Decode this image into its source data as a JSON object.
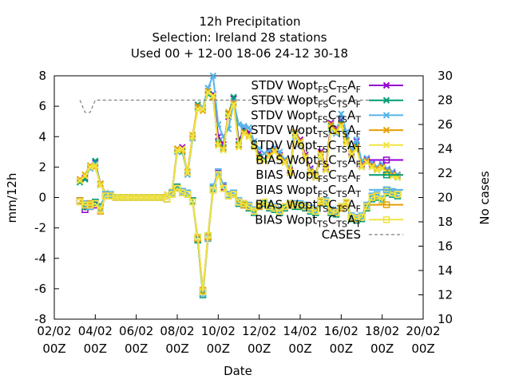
{
  "chart_data": {
    "type": "line",
    "title": [
      "12h Precipitation",
      "Selection: Ireland      28 stations",
      "Used  00 + 12-00 18-06 24-12 30-18"
    ],
    "xlabel": "Date",
    "ylabel": "mm/12h",
    "y2label": "No cases",
    "xlim": [
      0,
      216
    ],
    "ylim": [
      -8,
      8
    ],
    "y2lim": [
      10,
      30
    ],
    "xticks": [
      {
        "x": 0,
        "label": [
          "02/02",
          "00Z"
        ]
      },
      {
        "x": 24,
        "label": [
          "04/02",
          "00Z"
        ]
      },
      {
        "x": 48,
        "label": [
          "06/02",
          "00Z"
        ]
      },
      {
        "x": 72,
        "label": [
          "08/02",
          "00Z"
        ]
      },
      {
        "x": 96,
        "label": [
          "10/02",
          "00Z"
        ]
      },
      {
        "x": 120,
        "label": [
          "12/02",
          "00Z"
        ]
      },
      {
        "x": 144,
        "label": [
          "14/02",
          "00Z"
        ]
      },
      {
        "x": 168,
        "label": [
          "16/02",
          "00Z"
        ]
      },
      {
        "x": 192,
        "label": [
          "18/02",
          "00Z"
        ]
      },
      {
        "x": 216,
        "label": [
          "20/02",
          "00Z"
        ]
      }
    ],
    "yticks": [
      -8,
      -6,
      -4,
      -2,
      0,
      2,
      4,
      6,
      8
    ],
    "y2ticks": [
      10,
      12,
      14,
      16,
      18,
      20,
      22,
      24,
      26,
      28,
      30
    ],
    "grid": false,
    "legend_position": "top-right",
    "legend": [
      {
        "label": "STDV Wopt",
        "sub": [
          "FS",
          "C",
          "TS",
          "A",
          "F"
        ]
      },
      {
        "label": "STDV Wopt",
        "sub": [
          "FS",
          "C",
          "TS",
          "A",
          "F"
        ]
      },
      {
        "label": "STDV Wopt",
        "sub": [
          "FS",
          "C",
          "TS",
          "A",
          "T"
        ]
      },
      {
        "label": "STDV Wopt",
        "sub": [
          "TS",
          "C",
          "TS",
          "A",
          "F"
        ]
      },
      {
        "label": "STDV Wopt",
        "sub": [
          "TS",
          "C",
          "TS",
          "A",
          "T"
        ]
      },
      {
        "label": "BIAS Wopt",
        "sub": [
          "FS",
          "C",
          "TS",
          "A",
          "F"
        ]
      },
      {
        "label": "BIAS Wopt",
        "sub": [
          "FS",
          "C",
          "TS",
          "A",
          "F"
        ]
      },
      {
        "label": "BIAS Wopt",
        "sub": [
          "FS",
          "C",
          "TS",
          "A",
          "T"
        ]
      },
      {
        "label": "BIAS Wopt",
        "sub": [
          "TS",
          "C",
          "TS",
          "A",
          "F"
        ]
      },
      {
        "label": "BIAS Wopt",
        "sub": [
          "TS",
          "C",
          "TS",
          "A",
          "T"
        ]
      },
      {
        "label": "CASES",
        "sub": []
      }
    ],
    "x": [
      15,
      18,
      21,
      24,
      27,
      30,
      33,
      36,
      39,
      42,
      45,
      48,
      51,
      54,
      57,
      60,
      63,
      66,
      69,
      72,
      75,
      78,
      81,
      84,
      87,
      90,
      93,
      96,
      99,
      102,
      105,
      108,
      111,
      114,
      117,
      120,
      123,
      126,
      129,
      132,
      135,
      138,
      141,
      144,
      147,
      150,
      153,
      156,
      159,
      162,
      165,
      168,
      171,
      174,
      177,
      180,
      183,
      186,
      189,
      192,
      195,
      198,
      201
    ],
    "series": [
      {
        "name": "STDV-1",
        "color": "#9400d3",
        "marker": "x",
        "axis": "y1",
        "values": [
          1.1,
          1.3,
          2.0,
          2.3,
          0.9,
          0.3,
          0.1,
          0.0,
          0.0,
          0.0,
          0.0,
          0.0,
          0.0,
          0.0,
          0.0,
          0.0,
          0.0,
          0.2,
          0.4,
          3.2,
          3.3,
          1.6,
          4.0,
          6.0,
          5.8,
          7.0,
          6.8,
          4.0,
          3.5,
          5.3,
          6.5,
          3.7,
          4.5,
          4.3,
          3.5,
          2.9,
          2.5,
          3.0,
          3.2,
          2.8,
          2.5,
          1.8,
          4.3,
          3.8,
          2.8,
          1.9,
          1.4,
          3.0,
          2.0,
          4.9,
          4.5,
          5.1,
          4.0,
          3.0,
          3.7,
          2.2,
          2.5,
          2.2,
          2.0,
          2.1,
          1.8,
          1.6,
          1.5
        ]
      },
      {
        "name": "STDV-2",
        "color": "#009e73",
        "marker": "x",
        "axis": "y1",
        "values": [
          1.0,
          1.2,
          2.0,
          2.4,
          0.8,
          0.3,
          0.1,
          0.0,
          0.0,
          0.0,
          0.0,
          0.0,
          0.0,
          0.0,
          0.0,
          0.0,
          0.0,
          0.2,
          0.4,
          3.1,
          3.0,
          1.6,
          3.9,
          6.1,
          5.9,
          6.8,
          6.6,
          3.6,
          3.3,
          5.5,
          6.6,
          3.5,
          4.4,
          4.0,
          3.5,
          2.7,
          2.5,
          2.8,
          3.0,
          2.6,
          2.3,
          1.6,
          4.2,
          3.6,
          2.6,
          1.7,
          1.3,
          2.8,
          1.8,
          4.7,
          4.3,
          4.9,
          3.8,
          2.8,
          3.5,
          2.0,
          2.3,
          2.0,
          1.8,
          1.9,
          1.6,
          1.4,
          1.3
        ]
      },
      {
        "name": "STDV-3",
        "color": "#56b4e9",
        "marker": "x",
        "axis": "y1",
        "values": [
          1.1,
          1.4,
          1.9,
          2.2,
          0.9,
          0.3,
          0.1,
          0.0,
          0.0,
          0.0,
          0.0,
          0.0,
          0.0,
          0.0,
          0.0,
          0.0,
          0.0,
          0.2,
          0.4,
          3.0,
          3.1,
          1.5,
          3.9,
          5.9,
          5.9,
          7.2,
          8.0,
          4.8,
          4.0,
          4.5,
          6.3,
          4.8,
          4.7,
          4.6,
          3.7,
          3.2,
          2.9,
          3.1,
          3.3,
          3.0,
          2.5,
          1.9,
          4.0,
          3.5,
          2.7,
          1.8,
          1.5,
          2.7,
          1.9,
          4.5,
          4.2,
          5.5,
          4.3,
          3.1,
          3.8,
          2.4,
          2.6,
          2.3,
          2.0,
          2.2,
          1.9,
          1.7,
          1.5
        ]
      },
      {
        "name": "STDV-4",
        "color": "#e69f00",
        "marker": "x",
        "axis": "y1",
        "values": [
          1.2,
          1.5,
          2.1,
          2.0,
          0.9,
          0.3,
          0.1,
          0.0,
          0.0,
          0.0,
          0.0,
          0.0,
          0.0,
          0.0,
          0.0,
          0.0,
          0.0,
          0.2,
          0.4,
          3.2,
          3.1,
          1.7,
          4.1,
          6.0,
          5.7,
          7.0,
          6.6,
          3.5,
          3.2,
          5.6,
          6.2,
          3.4,
          4.3,
          4.1,
          3.4,
          2.6,
          2.4,
          2.8,
          3.1,
          2.7,
          2.4,
          1.7,
          4.3,
          3.7,
          2.7,
          1.7,
          1.4,
          2.9,
          1.9,
          4.8,
          4.4,
          4.8,
          3.7,
          2.9,
          3.3,
          2.1,
          2.4,
          2.1,
          1.9,
          2.0,
          1.7,
          1.5,
          1.4
        ]
      },
      {
        "name": "STDV-5",
        "color": "#f0e442",
        "marker": "x",
        "axis": "y1",
        "values": [
          1.1,
          1.4,
          2.0,
          2.1,
          0.8,
          0.3,
          0.1,
          0.0,
          0.0,
          0.0,
          0.0,
          0.0,
          0.0,
          0.0,
          0.0,
          0.0,
          0.0,
          0.2,
          0.4,
          3.1,
          3.2,
          1.6,
          4.0,
          5.8,
          5.8,
          6.9,
          6.7,
          3.4,
          3.1,
          5.4,
          6.1,
          3.3,
          4.2,
          4.0,
          3.3,
          2.5,
          2.4,
          2.7,
          3.0,
          2.6,
          2.3,
          1.6,
          4.1,
          3.6,
          2.6,
          1.6,
          1.3,
          2.8,
          1.8,
          4.6,
          4.3,
          4.7,
          3.6,
          2.8,
          3.2,
          2.0,
          2.3,
          2.0,
          1.8,
          1.9,
          1.6,
          1.4,
          1.3
        ]
      },
      {
        "name": "BIAS-1",
        "color": "#9400d3",
        "marker": "square",
        "axis": "y1",
        "values": [
          -0.3,
          -0.8,
          -0.6,
          -0.5,
          -0.8,
          0.1,
          0.1,
          0.0,
          0.0,
          0.0,
          0.0,
          0.0,
          0.0,
          0.0,
          0.0,
          0.0,
          0.0,
          -0.1,
          0.3,
          0.6,
          0.3,
          0.2,
          -0.3,
          -2.7,
          -6.2,
          -2.6,
          0.5,
          1.6,
          0.7,
          0.2,
          0.3,
          -0.3,
          -0.4,
          -0.6,
          -0.9,
          -0.5,
          -0.3,
          -0.6,
          -0.7,
          -0.9,
          -0.6,
          -0.4,
          -0.5,
          -0.5,
          -0.6,
          -0.8,
          -0.9,
          -0.2,
          -0.3,
          -0.9,
          -1.0,
          -0.6,
          -0.3,
          -1.3,
          -1.4,
          -1.3,
          -0.6,
          0.0,
          0.1,
          -0.2,
          0.4,
          0.3,
          0.2
        ]
      },
      {
        "name": "BIAS-2",
        "color": "#009e73",
        "marker": "square",
        "axis": "y1",
        "values": [
          -0.2,
          -0.6,
          -0.4,
          -0.3,
          -0.6,
          0.2,
          0.1,
          0.0,
          0.0,
          0.0,
          0.0,
          0.0,
          0.0,
          0.0,
          0.0,
          0.0,
          0.0,
          -0.1,
          0.3,
          0.7,
          0.4,
          0.3,
          -0.2,
          -2.8,
          -6.4,
          -2.5,
          0.6,
          1.5,
          0.6,
          0.1,
          0.2,
          -0.4,
          -0.5,
          -0.7,
          -1.0,
          -0.6,
          -0.4,
          -0.7,
          -0.8,
          -1.0,
          -0.7,
          -0.5,
          -0.6,
          -0.6,
          -0.7,
          -0.9,
          -1.0,
          -0.3,
          -0.4,
          -1.0,
          -1.1,
          -0.7,
          -0.4,
          -1.4,
          -1.5,
          -1.4,
          -0.7,
          -0.1,
          0.0,
          -0.3,
          0.3,
          0.2,
          0.1
        ]
      },
      {
        "name": "BIAS-3",
        "color": "#56b4e9",
        "marker": "square",
        "axis": "y1",
        "values": [
          -0.3,
          -0.4,
          -0.6,
          -0.4,
          -0.7,
          0.2,
          0.2,
          0.0,
          0.0,
          0.0,
          0.0,
          0.0,
          0.0,
          0.0,
          0.0,
          0.0,
          0.0,
          -0.1,
          0.3,
          0.6,
          0.4,
          0.3,
          -0.3,
          -2.6,
          -6.3,
          -2.7,
          0.7,
          1.7,
          0.8,
          0.2,
          0.3,
          -0.2,
          -0.4,
          -0.5,
          -0.8,
          -0.5,
          -0.3,
          -0.5,
          -0.6,
          -0.8,
          -0.6,
          -0.4,
          -0.4,
          -0.4,
          -0.5,
          -0.7,
          -0.8,
          -0.2,
          -0.2,
          -0.8,
          -0.9,
          -0.6,
          -0.3,
          -1.2,
          -1.3,
          -1.2,
          -0.5,
          0.1,
          0.2,
          -0.1,
          0.5,
          0.4,
          0.3
        ]
      },
      {
        "name": "BIAS-4",
        "color": "#e69f00",
        "marker": "square",
        "axis": "y1",
        "values": [
          -0.2,
          -0.5,
          -0.4,
          -0.4,
          -0.9,
          0.1,
          0.1,
          0.0,
          0.0,
          0.0,
          0.0,
          0.0,
          0.0,
          0.0,
          0.0,
          0.0,
          0.0,
          -0.1,
          0.2,
          0.6,
          0.3,
          0.2,
          -0.3,
          -2.7,
          -6.1,
          -2.6,
          0.5,
          1.5,
          0.6,
          0.1,
          0.2,
          -0.3,
          -0.5,
          -0.6,
          -0.9,
          -0.6,
          -0.3,
          -0.6,
          -0.7,
          -0.9,
          -0.6,
          -0.5,
          -0.5,
          -0.5,
          -0.6,
          -0.8,
          -0.9,
          -0.3,
          -0.3,
          -0.9,
          -1.0,
          -0.7,
          -0.4,
          -1.3,
          -1.4,
          -1.3,
          -0.6,
          0.0,
          0.1,
          -0.2,
          0.4,
          0.3,
          0.2
        ]
      },
      {
        "name": "BIAS-5",
        "color": "#f0e442",
        "marker": "square",
        "axis": "y1",
        "values": [
          -0.3,
          -0.5,
          -0.5,
          -0.4,
          -0.8,
          0.1,
          0.1,
          0.0,
          0.0,
          0.0,
          0.0,
          0.0,
          0.0,
          0.0,
          0.0,
          0.0,
          0.0,
          -0.1,
          0.2,
          0.6,
          0.3,
          0.2,
          -0.3,
          -2.6,
          -6.2,
          -2.5,
          0.5,
          1.5,
          0.6,
          0.1,
          0.2,
          -0.3,
          -0.4,
          -0.6,
          -0.9,
          -0.5,
          -0.3,
          -0.6,
          -0.7,
          -0.9,
          -0.6,
          -0.4,
          -0.5,
          -0.5,
          -0.6,
          -0.8,
          -0.9,
          -0.2,
          -0.3,
          -0.9,
          -1.0,
          -0.6,
          -0.3,
          -1.3,
          -1.4,
          -1.3,
          -0.6,
          0.0,
          0.1,
          -0.2,
          0.4,
          0.3,
          0.2
        ]
      },
      {
        "name": "CASES",
        "color": "#808080",
        "marker": "none",
        "dashed": true,
        "axis": "y2",
        "x": [
          15,
          18,
          21,
          24,
          27,
          201
        ],
        "values": [
          28,
          27,
          27,
          28,
          28,
          28
        ]
      }
    ]
  }
}
